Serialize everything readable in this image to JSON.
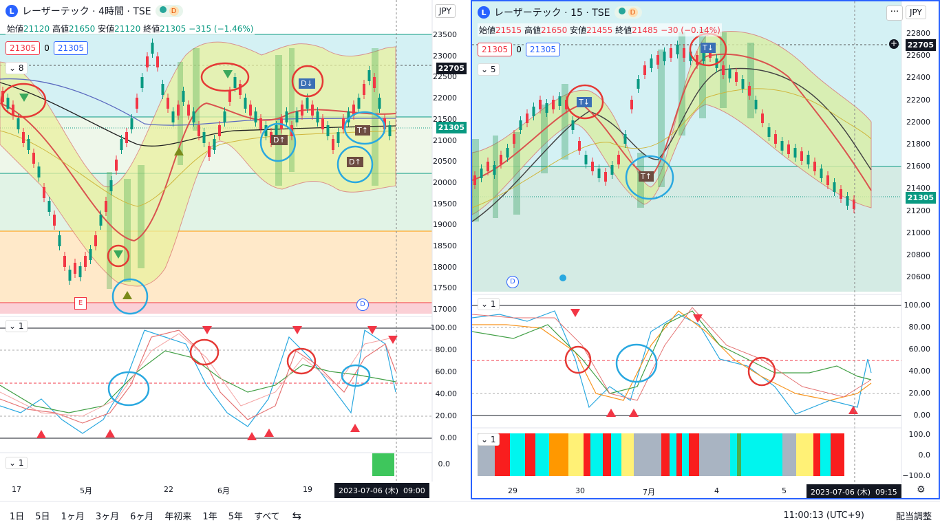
{
  "left": {
    "title": "レーザーテック · 4時間 · TSE",
    "logo": "L",
    "d_badge": "D",
    "ohlc": {
      "o_label": "始値",
      "o": "21120",
      "h_label": "高値",
      "h": "21650",
      "l_label": "安値",
      "l": "21120",
      "c_label": "終値",
      "c": "21305",
      "chg": "−315 (−1.46%)"
    },
    "boxes": [
      "21305",
      "0",
      "21305"
    ],
    "collapse_main": "8",
    "collapse_osc": "1",
    "collapse_bot": "1",
    "currency": "JPY",
    "y_ticks": [
      "23500",
      "23000",
      "22500",
      "22000",
      "21500",
      "21000",
      "20500",
      "20000",
      "19500",
      "19000",
      "18500",
      "18000",
      "17500",
      "17000"
    ],
    "osc_ticks": [
      "100.00",
      "80.00",
      "60.00",
      "40.00",
      "20.00",
      "0.00"
    ],
    "bot_tick": "0.0",
    "price_tags": [
      {
        "text": "22705",
        "color": "#131722"
      },
      {
        "text": "21305",
        "color": "#089981"
      }
    ],
    "x_labels": [
      "17",
      "5月",
      "22",
      "6月",
      "19"
    ],
    "date_tag": "2023-07-06 (木)",
    "time_tag": "09:00",
    "e_marker": "E",
    "d_marker": "D"
  },
  "right": {
    "title": "レーザーテック · 15 · TSE",
    "logo": "L",
    "d_badge": "D",
    "ohlc": {
      "o_label": "始値",
      "o": "21515",
      "h_label": "高値",
      "h": "21650",
      "l_label": "安値",
      "l": "21455",
      "c_label": "終値",
      "c": "21485",
      "chg": "−30 (−0.14%)"
    },
    "boxes": [
      "21305",
      "0",
      "21305"
    ],
    "collapse_main": "5",
    "collapse_osc": "1",
    "collapse_bot": "1",
    "currency": "JPY",
    "more": "···",
    "y_ticks": [
      "22800",
      "22600",
      "22400",
      "22200",
      "22000",
      "21800",
      "21600",
      "21400",
      "21200",
      "21000",
      "20800",
      "20600"
    ],
    "osc_ticks": [
      "100.00",
      "80.00",
      "60.00",
      "40.00",
      "20.00",
      "0.00"
    ],
    "bot_ticks": [
      "100.0",
      "0.0",
      "−100.0"
    ],
    "price_tags": [
      {
        "text": "22705",
        "color": "#131722"
      },
      {
        "text": "21305",
        "color": "#089981"
      }
    ],
    "x_labels": [
      "29",
      "30",
      "7月",
      "4",
      "5"
    ],
    "date_tag": "2023-07-06 (木)",
    "time_tag": "09:15",
    "d_marker": "D",
    "signal_labels": [
      "T↓",
      "T↓",
      "T↑"
    ]
  },
  "left_signals": [
    "D↓",
    "D↑",
    "T↑",
    "D↑"
  ],
  "bottom": {
    "timeframes": [
      "1日",
      "5日",
      "1ヶ月",
      "3ヶ月",
      "6ヶ月",
      "年初来",
      "1年",
      "5年",
      "すべて"
    ],
    "clock": "11:00:13 (UTC+9)",
    "adjust": "配当調整"
  },
  "colors": {
    "up": "#089981",
    "down": "#f23645",
    "accent": "#2962ff",
    "bg_cyan": "#d4f1f4",
    "bg_green": "#e1f3e6",
    "bg_orange": "#ffe6c2"
  }
}
